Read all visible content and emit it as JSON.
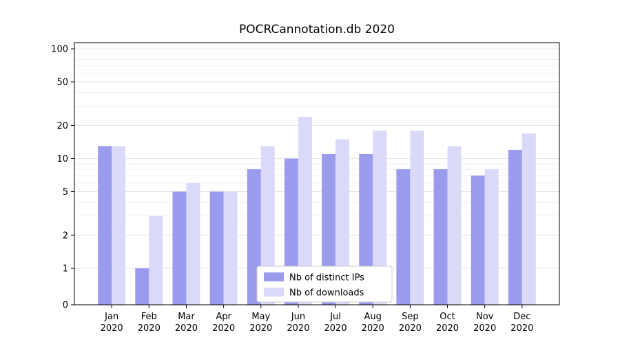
{
  "chart_data": {
    "type": "bar",
    "title": "POCRCannotation.db 2020",
    "categories": [
      "Jan 2020",
      "Feb 2020",
      "Mar 2020",
      "Apr 2020",
      "May 2020",
      "Jun 2020",
      "Jul 2020",
      "Aug 2020",
      "Sep 2020",
      "Oct 2020",
      "Nov 2020",
      "Dec 2020"
    ],
    "series": [
      {
        "name": "Nb of distinct IPs",
        "color": "#9b9bee",
        "values": [
          13,
          1,
          5,
          5,
          8,
          10,
          11,
          11,
          8,
          8,
          7,
          12
        ]
      },
      {
        "name": "Nb of downloads",
        "color": "#dadaf8",
        "values": [
          13,
          3,
          6,
          5,
          13,
          24,
          15,
          18,
          18,
          13,
          8,
          17
        ]
      }
    ],
    "xlabel": "",
    "ylabel": "",
    "yscale": "symlog",
    "yticks": [
      0,
      1,
      2,
      5,
      10,
      20,
      50,
      100
    ],
    "minor_yticks": [
      3,
      4,
      6,
      7,
      8,
      9,
      30,
      40,
      60,
      70,
      80,
      90
    ],
    "ylim": [
      0,
      115
    ],
    "grid": true,
    "legend_position": "lower center",
    "colors": {
      "axis": "#000000",
      "major_grid": "#e5e5e5",
      "minor_grid": "#f2f2f2",
      "legend_border": "#cccccc",
      "legend_background": "#ffffff"
    }
  }
}
